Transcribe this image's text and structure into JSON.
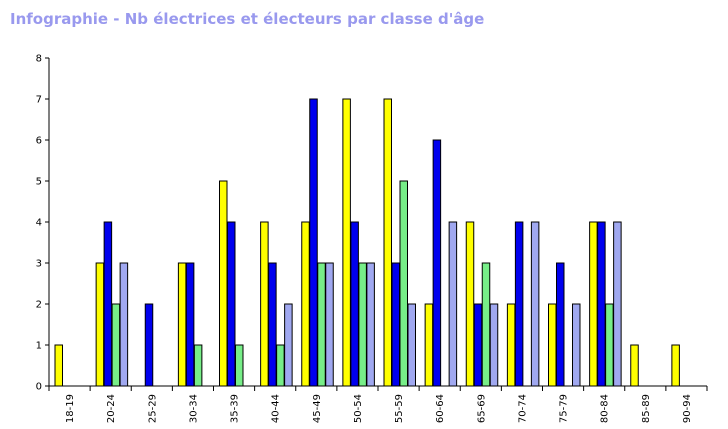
{
  "title": "Infographie - Nb électrices et électeurs par classe d'âge",
  "colors": {
    "series": [
      "#ffff00",
      "#0000ee",
      "#77ee88",
      "#a0a8f0"
    ],
    "title": "#9999ee",
    "axis": "#000000"
  },
  "chart_data": {
    "type": "bar",
    "title": "Infographie - Nb électrices et électeurs par classe d'âge",
    "xlabel": "",
    "ylabel": "",
    "ylim": [
      0,
      8
    ],
    "yticks": [
      "0",
      "1",
      "2",
      "3",
      "4",
      "5",
      "6",
      "7",
      "8"
    ],
    "grid": false,
    "legend": "none",
    "categories": [
      "18-19",
      "20-24",
      "25-29",
      "30-34",
      "35-39",
      "40-44",
      "45-49",
      "50-54",
      "55-59",
      "60-64",
      "65-69",
      "70-74",
      "75-79",
      "80-84",
      "85-89",
      "90-94"
    ],
    "series": [
      {
        "values": [
          1,
          3,
          0,
          3,
          5,
          4,
          4,
          7,
          7,
          2,
          4,
          2,
          2,
          4,
          1,
          1
        ]
      },
      {
        "values": [
          0,
          4,
          2,
          3,
          4,
          3,
          7,
          4,
          3,
          6,
          2,
          4,
          3,
          4,
          0,
          0
        ]
      },
      {
        "values": [
          0,
          2,
          0,
          1,
          1,
          1,
          3,
          3,
          5,
          0,
          3,
          0,
          0,
          2,
          0,
          0
        ]
      },
      {
        "values": [
          0,
          3,
          0,
          0,
          0,
          2,
          3,
          3,
          2,
          4,
          2,
          4,
          2,
          4,
          0,
          0
        ]
      }
    ]
  }
}
